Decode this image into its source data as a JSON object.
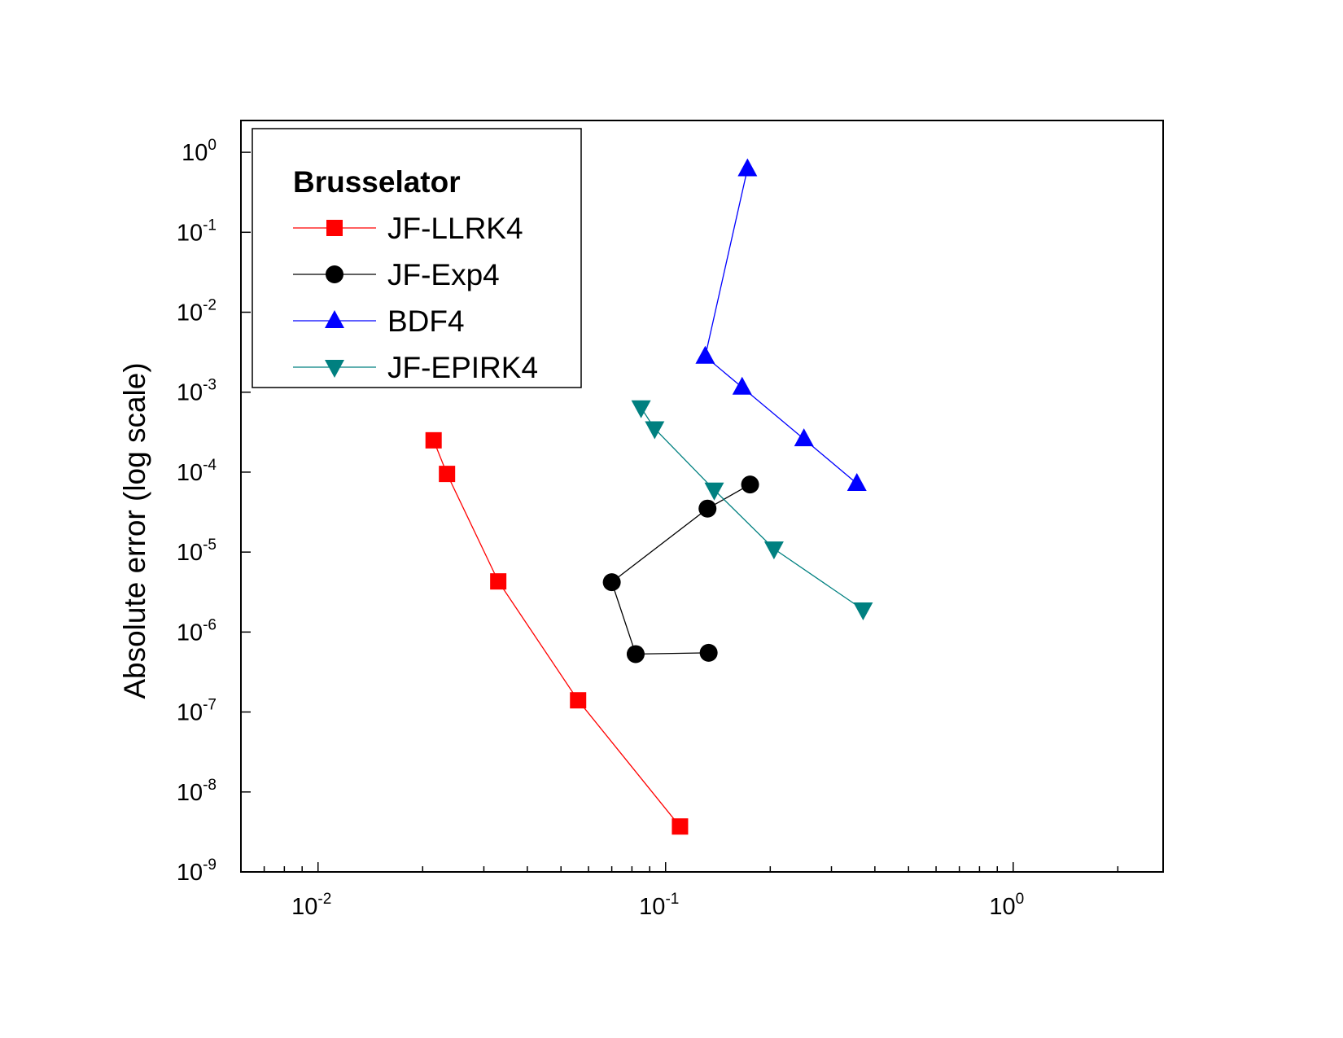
{
  "chart_data": {
    "type": "line",
    "title": "",
    "xlabel": "",
    "ylabel": "Absolute error (log scale)",
    "x_scale": "log",
    "y_scale": "log",
    "xlim": [
      0.006,
      2.7
    ],
    "ylim": [
      1e-09,
      2.5
    ],
    "grid": false,
    "legend": {
      "title": "Brusselator",
      "placement": "top-left"
    },
    "x_ticks": [
      {
        "base": "10",
        "exp": "-2",
        "value": 0.01
      },
      {
        "base": "10",
        "exp": "-1",
        "value": 0.1
      },
      {
        "base": "10",
        "exp": "0",
        "value": 1
      }
    ],
    "y_ticks": [
      {
        "base": "10",
        "exp": "0",
        "value": 1
      },
      {
        "base": "10",
        "exp": "-1",
        "value": 0.1
      },
      {
        "base": "10",
        "exp": "-2",
        "value": 0.01
      },
      {
        "base": "10",
        "exp": "-3",
        "value": 0.001
      },
      {
        "base": "10",
        "exp": "-4",
        "value": 0.0001
      },
      {
        "base": "10",
        "exp": "-5",
        "value": 1e-05
      },
      {
        "base": "10",
        "exp": "-6",
        "value": 1e-06
      },
      {
        "base": "10",
        "exp": "-7",
        "value": 1e-07
      },
      {
        "base": "10",
        "exp": "-8",
        "value": 1e-08
      },
      {
        "base": "10",
        "exp": "-9",
        "value": 1e-09
      }
    ],
    "series": [
      {
        "name": "JF-LLRK4",
        "color": "#ff0000",
        "marker": "square",
        "points": [
          {
            "x": 0.0215,
            "y": 0.00025
          },
          {
            "x": 0.0235,
            "y": 9.5e-05
          },
          {
            "x": 0.033,
            "y": 4.3e-06
          },
          {
            "x": 0.056,
            "y": 1.4e-07
          },
          {
            "x": 0.11,
            "y": 3.7e-09
          }
        ]
      },
      {
        "name": "JF-Exp4",
        "color": "#000000",
        "marker": "circle",
        "points": [
          {
            "x": 0.175,
            "y": 7e-05
          },
          {
            "x": 0.132,
            "y": 3.5e-05
          },
          {
            "x": 0.07,
            "y": 4.2e-06
          },
          {
            "x": 0.082,
            "y": 5.3e-07
          },
          {
            "x": 0.133,
            "y": 5.5e-07
          }
        ]
      },
      {
        "name": "BDF4",
        "color": "#0000ff",
        "marker": "triangle-up",
        "points": [
          {
            "x": 0.172,
            "y": 0.62
          },
          {
            "x": 0.13,
            "y": 0.0028
          },
          {
            "x": 0.166,
            "y": 0.00115
          },
          {
            "x": 0.25,
            "y": 0.00026
          },
          {
            "x": 0.355,
            "y": 7.2e-05
          }
        ]
      },
      {
        "name": "JF-EPIRK4",
        "color": "#008080",
        "marker": "triangle-down",
        "points": [
          {
            "x": 0.085,
            "y": 0.00064
          },
          {
            "x": 0.093,
            "y": 0.00035
          },
          {
            "x": 0.138,
            "y": 6e-05
          },
          {
            "x": 0.205,
            "y": 1.1e-05
          },
          {
            "x": 0.37,
            "y": 1.9e-06
          }
        ]
      }
    ]
  }
}
